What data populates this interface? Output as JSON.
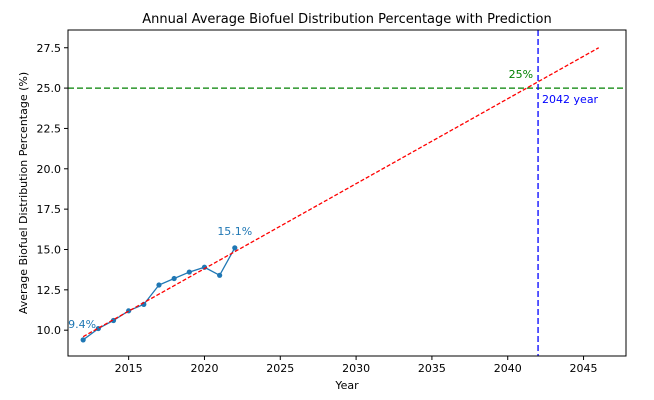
{
  "chart_data": {
    "type": "line",
    "title": "Annual Average Biofuel Distribution Percentage with Prediction",
    "xlabel": "Year",
    "ylabel": "Average Biofuel Distribution Percentage (%)",
    "xlim": [
      2011,
      2047.8
    ],
    "ylim": [
      8.4,
      28.6
    ],
    "x_ticks": [
      2015,
      2020,
      2025,
      2030,
      2035,
      2040,
      2045
    ],
    "y_ticks": [
      10.0,
      12.5,
      15.0,
      17.5,
      20.0,
      22.5,
      25.0,
      27.5
    ],
    "y_tick_labels": [
      "10.0",
      "12.5",
      "15.0",
      "17.5",
      "20.0",
      "22.5",
      "25.0",
      "27.5"
    ],
    "grid": false,
    "series": [
      {
        "kind": "actual",
        "color": "#1f77b4",
        "x": [
          2012,
          2013,
          2014,
          2015,
          2016,
          2017,
          2018,
          2019,
          2020,
          2021,
          2022
        ],
        "y": [
          9.4,
          10.1,
          10.6,
          11.2,
          11.6,
          12.8,
          13.2,
          13.6,
          13.9,
          13.4,
          15.1
        ]
      },
      {
        "kind": "trend-prediction",
        "color": "#ff0000",
        "style": "dashed",
        "x": [
          2012,
          2046
        ],
        "y": [
          9.6,
          27.5
        ]
      }
    ],
    "reference_lines": [
      {
        "orientation": "horizontal",
        "value": 25,
        "color": "#008000",
        "style": "dashed"
      },
      {
        "orientation": "vertical",
        "value": 2042,
        "color": "#0000ff",
        "style": "dashed"
      }
    ],
    "annotations": [
      {
        "text": "9.4%",
        "x": 2012,
        "y": 9.4,
        "color": "#1f77b4"
      },
      {
        "text": "15.1%",
        "x": 2022,
        "y": 15.1,
        "color": "#1f77b4"
      },
      {
        "text": "25%",
        "x": 2042,
        "y": 25,
        "color": "#008000"
      },
      {
        "text": "2042 year",
        "x": 2042,
        "y": 25,
        "color": "#0000ff"
      }
    ]
  }
}
